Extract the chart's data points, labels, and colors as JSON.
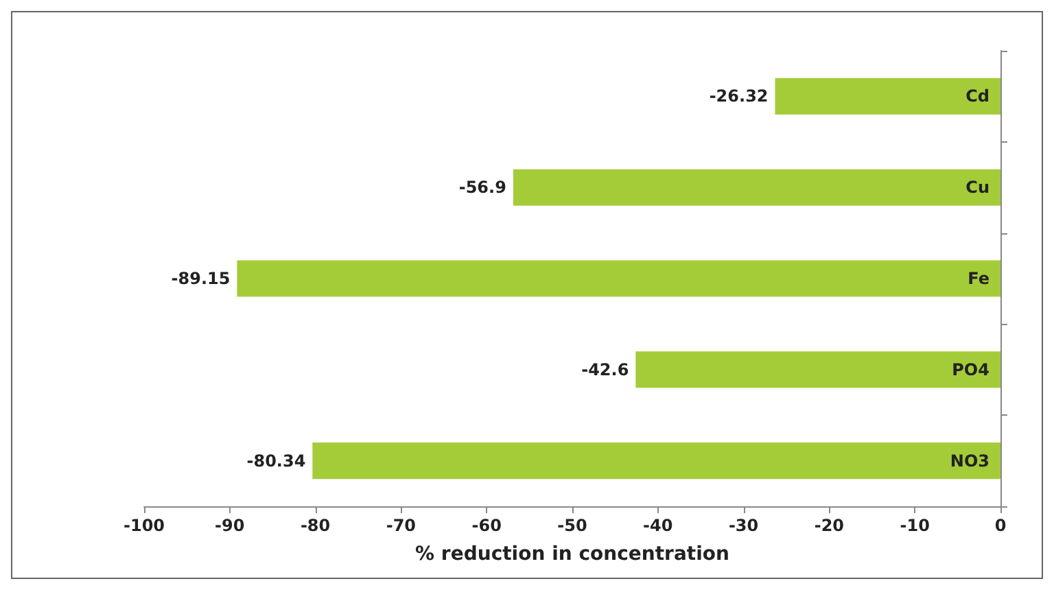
{
  "chart_data": {
    "type": "bar",
    "orientation": "horizontal",
    "xlabel": "% reduction in concentration",
    "categories": [
      "Cd",
      "Cu",
      "Fe",
      "PO4",
      "NO3"
    ],
    "values": [
      -26.32,
      -56.9,
      -89.15,
      -42.6,
      -80.34
    ],
    "color": "#a4cc39",
    "xlim": [
      -100,
      0
    ],
    "xticks": [
      -100,
      -90,
      -80,
      -70,
      -60,
      -50,
      -40,
      -30,
      -20,
      -10,
      0
    ],
    "data_labels": true,
    "grid": false
  }
}
